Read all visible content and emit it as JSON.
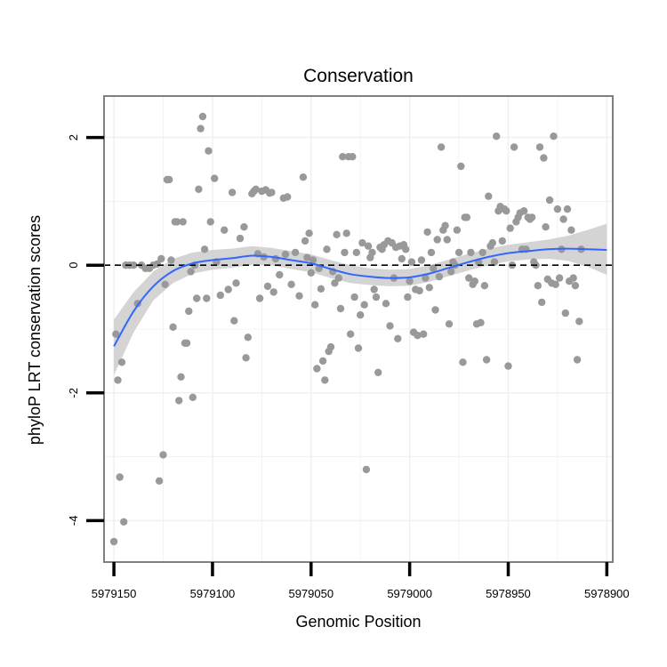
{
  "chart_data": {
    "type": "scatter",
    "title": "Conservation",
    "xlabel": "Genomic Position",
    "ylabel": "phyloP LRT conservation scores",
    "x_reversed": true,
    "xlim": [
      5979155,
      5978897
    ],
    "ylim": [
      -4.65,
      2.65
    ],
    "x_ticks": [
      5979150,
      5979100,
      5979050,
      5979000,
      5978950,
      5978900
    ],
    "x_tick_labels": [
      "5979150",
      "5979100",
      "5979050",
      "5979000",
      "5978950",
      "5978900"
    ],
    "y_ticks": [
      -4,
      -2,
      0,
      2
    ],
    "y_tick_labels": [
      "-4",
      "-2",
      "0",
      "2"
    ],
    "grid": true,
    "reference_line": {
      "y": 0,
      "style": "dashed"
    },
    "colors": {
      "points": "#999999",
      "smooth": "#3366ff",
      "band": "#cccccc",
      "frame": "#7f7f7f",
      "grid": "#f0f0f0"
    },
    "points": [
      [
        5979150,
        -4.33
      ],
      [
        5979149,
        -1.08
      ],
      [
        5979148,
        -1.8
      ],
      [
        5979147,
        -3.32
      ],
      [
        5979146,
        -1.52
      ],
      [
        5979145,
        -4.02
      ],
      [
        5979144,
        0.0
      ],
      [
        5979142,
        0.0
      ],
      [
        5979140,
        0.0
      ],
      [
        5979138,
        -0.6
      ],
      [
        5979136,
        0.0
      ],
      [
        5979134,
        -0.05
      ],
      [
        5979132,
        -0.05
      ],
      [
        5979130,
        0.0
      ],
      [
        5979128,
        0.02
      ],
      [
        5979127,
        -3.38
      ],
      [
        5979126,
        0.1
      ],
      [
        5979125,
        -2.97
      ],
      [
        5979124,
        -0.3
      ],
      [
        5979123,
        1.34
      ],
      [
        5979122,
        1.34
      ],
      [
        5979121,
        0.08
      ],
      [
        5979120,
        -0.97
      ],
      [
        5979119,
        0.68
      ],
      [
        5979118,
        0.68
      ],
      [
        5979117,
        -2.12
      ],
      [
        5979116,
        -1.75
      ],
      [
        5979115,
        0.68
      ],
      [
        5979114,
        -1.22
      ],
      [
        5979113,
        -1.22
      ],
      [
        5979112,
        -0.72
      ],
      [
        5979111,
        -0.1
      ],
      [
        5979110,
        -2.07
      ],
      [
        5979109,
        0.0
      ],
      [
        5979108,
        -0.52
      ],
      [
        5979107,
        1.19
      ],
      [
        5979106,
        2.14
      ],
      [
        5979105,
        2.33
      ],
      [
        5979104,
        0.25
      ],
      [
        5979103,
        -0.52
      ],
      [
        5979102,
        1.79
      ],
      [
        5979101,
        0.68
      ],
      [
        5979099,
        1.36
      ],
      [
        5979098,
        0.05
      ],
      [
        5979096,
        -0.47
      ],
      [
        5979094,
        0.55
      ],
      [
        5979092,
        -0.38
      ],
      [
        5979090,
        1.14
      ],
      [
        5979089,
        -0.87
      ],
      [
        5979088,
        -0.28
      ],
      [
        5979086,
        0.42
      ],
      [
        5979084,
        0.6
      ],
      [
        5979083,
        -1.45
      ],
      [
        5979082,
        -1.13
      ],
      [
        5979080,
        1.12
      ],
      [
        5979079,
        1.16
      ],
      [
        5979078,
        1.19
      ],
      [
        5979077,
        0.18
      ],
      [
        5979076,
        -0.52
      ],
      [
        5979075,
        1.16
      ],
      [
        5979074,
        0.13
      ],
      [
        5979073,
        1.18
      ],
      [
        5979072,
        -0.33
      ],
      [
        5979071,
        1.13
      ],
      [
        5979070,
        1.14
      ],
      [
        5979069,
        -0.42
      ],
      [
        5979068,
        0.1
      ],
      [
        5979066,
        -0.15
      ],
      [
        5979064,
        1.05
      ],
      [
        5979063,
        0.17
      ],
      [
        5979062,
        1.07
      ],
      [
        5979060,
        -0.3
      ],
      [
        5979058,
        0.2
      ],
      [
        5979056,
        -0.48
      ],
      [
        5979054,
        1.38
      ],
      [
        5979053,
        0.38
      ],
      [
        5979052,
        0.12
      ],
      [
        5979051,
        0.5
      ],
      [
        5979050,
        -0.12
      ],
      [
        5979049,
        0.08
      ],
      [
        5979048,
        -0.62
      ],
      [
        5979047,
        -1.62
      ],
      [
        5979046,
        -0.05
      ],
      [
        5979045,
        -0.37
      ],
      [
        5979044,
        -1.5
      ],
      [
        5979043,
        -1.8
      ],
      [
        5979042,
        0.25
      ],
      [
        5979041,
        -1.35
      ],
      [
        5979040,
        -1.28
      ],
      [
        5979039,
        -0.1
      ],
      [
        5979038,
        -0.28
      ],
      [
        5979037,
        0.48
      ],
      [
        5979036,
        -0.2
      ],
      [
        5979035,
        -0.68
      ],
      [
        5979034,
        1.7
      ],
      [
        5979033,
        0.2
      ],
      [
        5979032,
        0.5
      ],
      [
        5979031,
        1.7
      ],
      [
        5979030,
        -1.08
      ],
      [
        5979029,
        1.7
      ],
      [
        5979028,
        -0.5
      ],
      [
        5979027,
        0.2
      ],
      [
        5979026,
        -1.3
      ],
      [
        5979025,
        -0.78
      ],
      [
        5979024,
        0.35
      ],
      [
        5979023,
        -0.62
      ],
      [
        5979022,
        -3.2
      ],
      [
        5979021,
        0.3
      ],
      [
        5979020,
        0.12
      ],
      [
        5979019,
        0.2
      ],
      [
        5979018,
        -0.38
      ],
      [
        5979017,
        -0.5
      ],
      [
        5979016,
        -1.68
      ],
      [
        5979015,
        0.28
      ],
      [
        5979014,
        0.25
      ],
      [
        5979013,
        0.32
      ],
      [
        5979012,
        -0.6
      ],
      [
        5979011,
        0.38
      ],
      [
        5979010,
        -0.95
      ],
      [
        5979009,
        0.35
      ],
      [
        5979008,
        -0.2
      ],
      [
        5979007,
        0.28
      ],
      [
        5979006,
        -1.15
      ],
      [
        5979005,
        0.3
      ],
      [
        5979004,
        0.1
      ],
      [
        5979003,
        0.32
      ],
      [
        5979002,
        0.25
      ],
      [
        5979001,
        -0.5
      ],
      [
        5979000,
        -0.25
      ],
      [
        5978999,
        0.05
      ],
      [
        5978998,
        -1.05
      ],
      [
        5978997,
        -0.38
      ],
      [
        5978996,
        -1.1
      ],
      [
        5978995,
        -0.4
      ],
      [
        5978994,
        0.08
      ],
      [
        5978993,
        -1.08
      ],
      [
        5978992,
        -0.2
      ],
      [
        5978991,
        0.52
      ],
      [
        5978990,
        -0.35
      ],
      [
        5978989,
        0.2
      ],
      [
        5978988,
        -0.05
      ],
      [
        5978987,
        -0.7
      ],
      [
        5978986,
        0.4
      ],
      [
        5978985,
        -0.18
      ],
      [
        5978984,
        1.85
      ],
      [
        5978983,
        0.55
      ],
      [
        5978982,
        0.62
      ],
      [
        5978981,
        0.4
      ],
      [
        5978980,
        -0.92
      ],
      [
        5978979,
        -0.1
      ],
      [
        5978978,
        0.05
      ],
      [
        5978977,
        0.0
      ],
      [
        5978976,
        0.55
      ],
      [
        5978975,
        0.2
      ],
      [
        5978974,
        1.55
      ],
      [
        5978973,
        -1.52
      ],
      [
        5978972,
        0.75
      ],
      [
        5978971,
        0.75
      ],
      [
        5978970,
        -0.2
      ],
      [
        5978969,
        0.2
      ],
      [
        5978968,
        -0.3
      ],
      [
        5978967,
        -0.25
      ],
      [
        5978966,
        -0.92
      ],
      [
        5978965,
        0.05
      ],
      [
        5978964,
        -0.9
      ],
      [
        5978963,
        0.2
      ],
      [
        5978962,
        -0.32
      ],
      [
        5978961,
        -1.48
      ],
      [
        5978960,
        1.08
      ],
      [
        5978959,
        0.3
      ],
      [
        5978958,
        0.35
      ],
      [
        5978957,
        0.05
      ],
      [
        5978956,
        2.02
      ],
      [
        5978955,
        0.85
      ],
      [
        5978954,
        0.92
      ],
      [
        5978953,
        0.38
      ],
      [
        5978952,
        0.88
      ],
      [
        5978951,
        0.85
      ],
      [
        5978950,
        -1.58
      ],
      [
        5978949,
        0.58
      ],
      [
        5978948,
        0.0
      ],
      [
        5978947,
        1.85
      ],
      [
        5978946,
        0.68
      ],
      [
        5978945,
        0.75
      ],
      [
        5978944,
        0.82
      ],
      [
        5978943,
        0.25
      ],
      [
        5978942,
        0.85
      ],
      [
        5978941,
        0.25
      ],
      [
        5978940,
        0.75
      ],
      [
        5978939,
        0.72
      ],
      [
        5978938,
        0.75
      ],
      [
        5978937,
        0.05
      ],
      [
        5978936,
        0.0
      ],
      [
        5978935,
        -0.32
      ],
      [
        5978934,
        1.85
      ],
      [
        5978933,
        -0.58
      ],
      [
        5978932,
        1.68
      ],
      [
        5978931,
        0.6
      ],
      [
        5978930,
        -0.22
      ],
      [
        5978929,
        1.02
      ],
      [
        5978928,
        -0.28
      ],
      [
        5978927,
        2.02
      ],
      [
        5978926,
        -0.3
      ],
      [
        5978925,
        0.88
      ],
      [
        5978924,
        -0.2
      ],
      [
        5978923,
        0.25
      ],
      [
        5978922,
        0.72
      ],
      [
        5978921,
        -0.75
      ],
      [
        5978920,
        0.88
      ],
      [
        5978919,
        -0.25
      ],
      [
        5978918,
        0.55
      ],
      [
        5978917,
        -0.2
      ],
      [
        5978916,
        -0.32
      ],
      [
        5978915,
        -1.48
      ],
      [
        5978914,
        -0.88
      ],
      [
        5978913,
        0.25
      ]
    ],
    "smooth": [
      [
        5979150,
        -1.27
      ],
      [
        5979140,
        -0.72
      ],
      [
        5979130,
        -0.33
      ],
      [
        5979120,
        -0.09
      ],
      [
        5979110,
        0.03
      ],
      [
        5979100,
        0.08
      ],
      [
        5979090,
        0.11
      ],
      [
        5979080,
        0.15
      ],
      [
        5979070,
        0.13
      ],
      [
        5979060,
        0.08
      ],
      [
        5979050,
        0.03
      ],
      [
        5979040,
        -0.06
      ],
      [
        5979030,
        -0.14
      ],
      [
        5979020,
        -0.18
      ],
      [
        5979010,
        -0.2
      ],
      [
        5979000,
        -0.19
      ],
      [
        5978990,
        -0.13
      ],
      [
        5978980,
        -0.04
      ],
      [
        5978970,
        0.05
      ],
      [
        5978960,
        0.13
      ],
      [
        5978950,
        0.19
      ],
      [
        5978940,
        0.22
      ],
      [
        5978930,
        0.25
      ],
      [
        5978920,
        0.26
      ],
      [
        5978910,
        0.25
      ],
      [
        5978900,
        0.24
      ]
    ],
    "band": [
      [
        5979150,
        -1.72,
        -0.85
      ],
      [
        5979140,
        -1.05,
        -0.42
      ],
      [
        5979130,
        -0.55,
        -0.1
      ],
      [
        5979120,
        -0.28,
        0.1
      ],
      [
        5979110,
        -0.13,
        0.2
      ],
      [
        5979100,
        -0.07,
        0.24
      ],
      [
        5979090,
        -0.04,
        0.26
      ],
      [
        5979080,
        0.01,
        0.3
      ],
      [
        5979070,
        0.0,
        0.27
      ],
      [
        5979060,
        -0.06,
        0.22
      ],
      [
        5979050,
        -0.11,
        0.17
      ],
      [
        5979040,
        -0.2,
        0.08
      ],
      [
        5979030,
        -0.28,
        0.0
      ],
      [
        5979020,
        -0.31,
        -0.05
      ],
      [
        5979010,
        -0.33,
        -0.07
      ],
      [
        5979000,
        -0.32,
        -0.06
      ],
      [
        5978990,
        -0.26,
        0.0
      ],
      [
        5978980,
        -0.17,
        0.09
      ],
      [
        5978970,
        -0.08,
        0.18
      ],
      [
        5978960,
        0.0,
        0.26
      ],
      [
        5978950,
        0.06,
        0.32
      ],
      [
        5978940,
        0.09,
        0.36
      ],
      [
        5978930,
        0.1,
        0.4
      ],
      [
        5978920,
        0.07,
        0.46
      ],
      [
        5978910,
        -0.02,
        0.55
      ],
      [
        5978900,
        -0.15,
        0.65
      ]
    ]
  }
}
